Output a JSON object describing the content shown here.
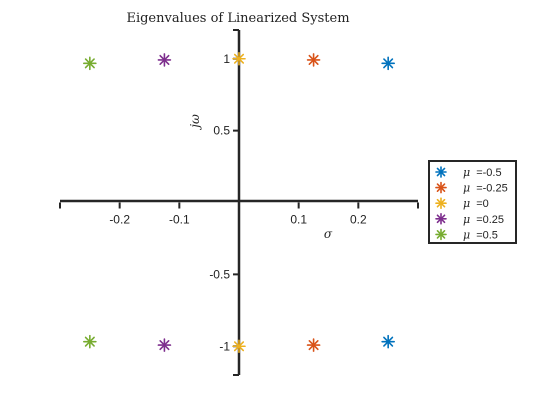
{
  "chart_data": {
    "type": "scatter",
    "title": "Eigenvalues of Linearized System",
    "xlabel": "σ",
    "ylabel": "jω",
    "xlim": [
      -0.3,
      0.3
    ],
    "ylim": [
      -1.2,
      1.2
    ],
    "x_ticks": [
      {
        "value": -0.2,
        "label": "-0.2"
      },
      {
        "value": -0.1,
        "label": "-0.1"
      },
      {
        "value": 0.1,
        "label": "0.1"
      },
      {
        "value": 0.2,
        "label": "0.2"
      }
    ],
    "y_ticks": [
      {
        "value": 1,
        "label": "1"
      },
      {
        "value": 0.5,
        "label": "0.5"
      },
      {
        "value": -0.5,
        "label": "-0.5"
      },
      {
        "value": -1,
        "label": "-1"
      }
    ],
    "marker": "asterisk",
    "grid": false,
    "legend_position": "right",
    "series": [
      {
        "name": "μ =-0.5",
        "mu_symbol": "μ",
        "mu_value": "=-0.5",
        "color": "#0072BD",
        "points": [
          [
            0.25,
            0.968
          ],
          [
            0.25,
            -0.968
          ]
        ]
      },
      {
        "name": "μ =-0.25",
        "mu_symbol": "μ",
        "mu_value": "=-0.25",
        "color": "#D95319",
        "points": [
          [
            0.125,
            0.992
          ],
          [
            0.125,
            -0.992
          ]
        ]
      },
      {
        "name": "μ =0",
        "mu_symbol": "μ",
        "mu_value": "=0",
        "color": "#EDB120",
        "points": [
          [
            0,
            1
          ],
          [
            0,
            -1
          ]
        ]
      },
      {
        "name": "μ =0.25",
        "mu_symbol": "μ",
        "mu_value": "=0.25",
        "color": "#7E2F8E",
        "points": [
          [
            -0.125,
            0.992
          ],
          [
            -0.125,
            -0.992
          ]
        ]
      },
      {
        "name": "μ =0.5",
        "mu_symbol": "μ",
        "mu_value": "=0.5",
        "color": "#77AC30",
        "points": [
          [
            -0.25,
            0.968
          ],
          [
            -0.25,
            -0.968
          ]
        ]
      }
    ]
  }
}
